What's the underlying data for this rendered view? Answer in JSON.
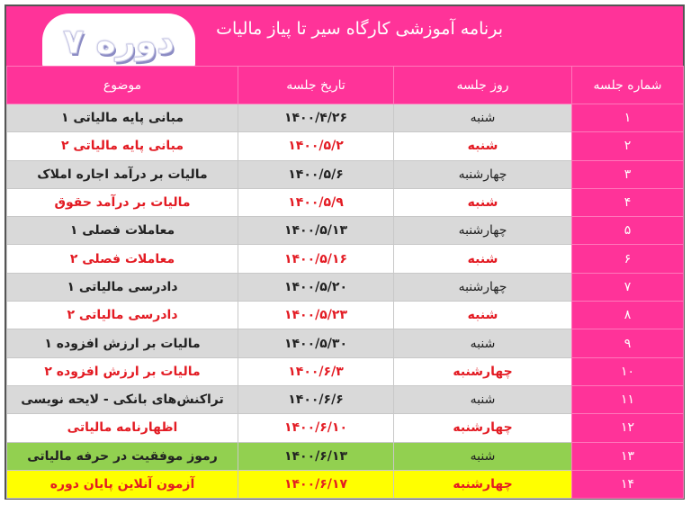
{
  "header": {
    "title": "برنامه آموزشی کارگاه سیر تا پیاز مالیات",
    "badge": "دوره ۷"
  },
  "columns": [
    "شماره جلسه",
    "روز جلسه",
    "تاریخ جلسه",
    "موضوع"
  ],
  "colors": {
    "pink": "#FF3399",
    "gray": "#D9D9D9",
    "green": "#92D050",
    "yellow": "#FFFF00",
    "red_text": "#E31B23"
  },
  "rows": [
    {
      "num": "۱",
      "day": "شنبه",
      "date": "۱۴۰۰/۴/۲۶",
      "topic": "مبانی پایه مالیاتی ۱",
      "bg": "gray",
      "red": false
    },
    {
      "num": "۲",
      "day": "شنبه",
      "date": "۱۴۰۰/۵/۲",
      "topic": "مبانی پایه مالیاتی ۲",
      "bg": "white",
      "red": true
    },
    {
      "num": "۳",
      "day": "چهارشنبه",
      "date": "۱۴۰۰/۵/۶",
      "topic": "مالیات بر درآمد اجاره املاک",
      "bg": "gray",
      "red": false
    },
    {
      "num": "۴",
      "day": "شنبه",
      "date": "۱۴۰۰/۵/۹",
      "topic": "مالیات بر درآمد حقوق",
      "bg": "white",
      "red": true
    },
    {
      "num": "۵",
      "day": "چهارشنبه",
      "date": "۱۴۰۰/۵/۱۳",
      "topic": "معاملات فصلی ۱",
      "bg": "gray",
      "red": false
    },
    {
      "num": "۶",
      "day": "شنبه",
      "date": "۱۴۰۰/۵/۱۶",
      "topic": "معاملات فصلی ۲",
      "bg": "white",
      "red": true
    },
    {
      "num": "۷",
      "day": "چهارشنبه",
      "date": "۱۴۰۰/۵/۲۰",
      "topic": "دادرسی مالیاتی ۱",
      "bg": "gray",
      "red": false
    },
    {
      "num": "۸",
      "day": "شنبه",
      "date": "۱۴۰۰/۵/۲۳",
      "topic": "دادرسی مالیاتی ۲",
      "bg": "white",
      "red": true
    },
    {
      "num": "۹",
      "day": "شنبه",
      "date": "۱۴۰۰/۵/۳۰",
      "topic": "مالیات بر ارزش افزوده ۱",
      "bg": "gray",
      "red": false
    },
    {
      "num": "۱۰",
      "day": "چهارشنبه",
      "date": "۱۴۰۰/۶/۳",
      "topic": "مالیات بر ارزش افزوده ۲",
      "bg": "white",
      "red": true
    },
    {
      "num": "۱۱",
      "day": "شنبه",
      "date": "۱۴۰۰/۶/۶",
      "topic": "تراکنش‌های بانکی - لایحه نویسی",
      "bg": "gray",
      "red": false
    },
    {
      "num": "۱۲",
      "day": "چهارشنبه",
      "date": "۱۴۰۰/۶/۱۰",
      "topic": "اظهارنامه مالیاتی",
      "bg": "white",
      "red": true
    },
    {
      "num": "۱۳",
      "day": "شنبه",
      "date": "۱۴۰۰/۶/۱۳",
      "topic": "رموز موفقیت در حرفه مالیاتی",
      "bg": "green",
      "red": false
    },
    {
      "num": "۱۴",
      "day": "چهارشنبه",
      "date": "۱۴۰۰/۶/۱۷",
      "topic": "آزمون آنلاین پایان دوره",
      "bg": "yellow",
      "red": true
    }
  ]
}
